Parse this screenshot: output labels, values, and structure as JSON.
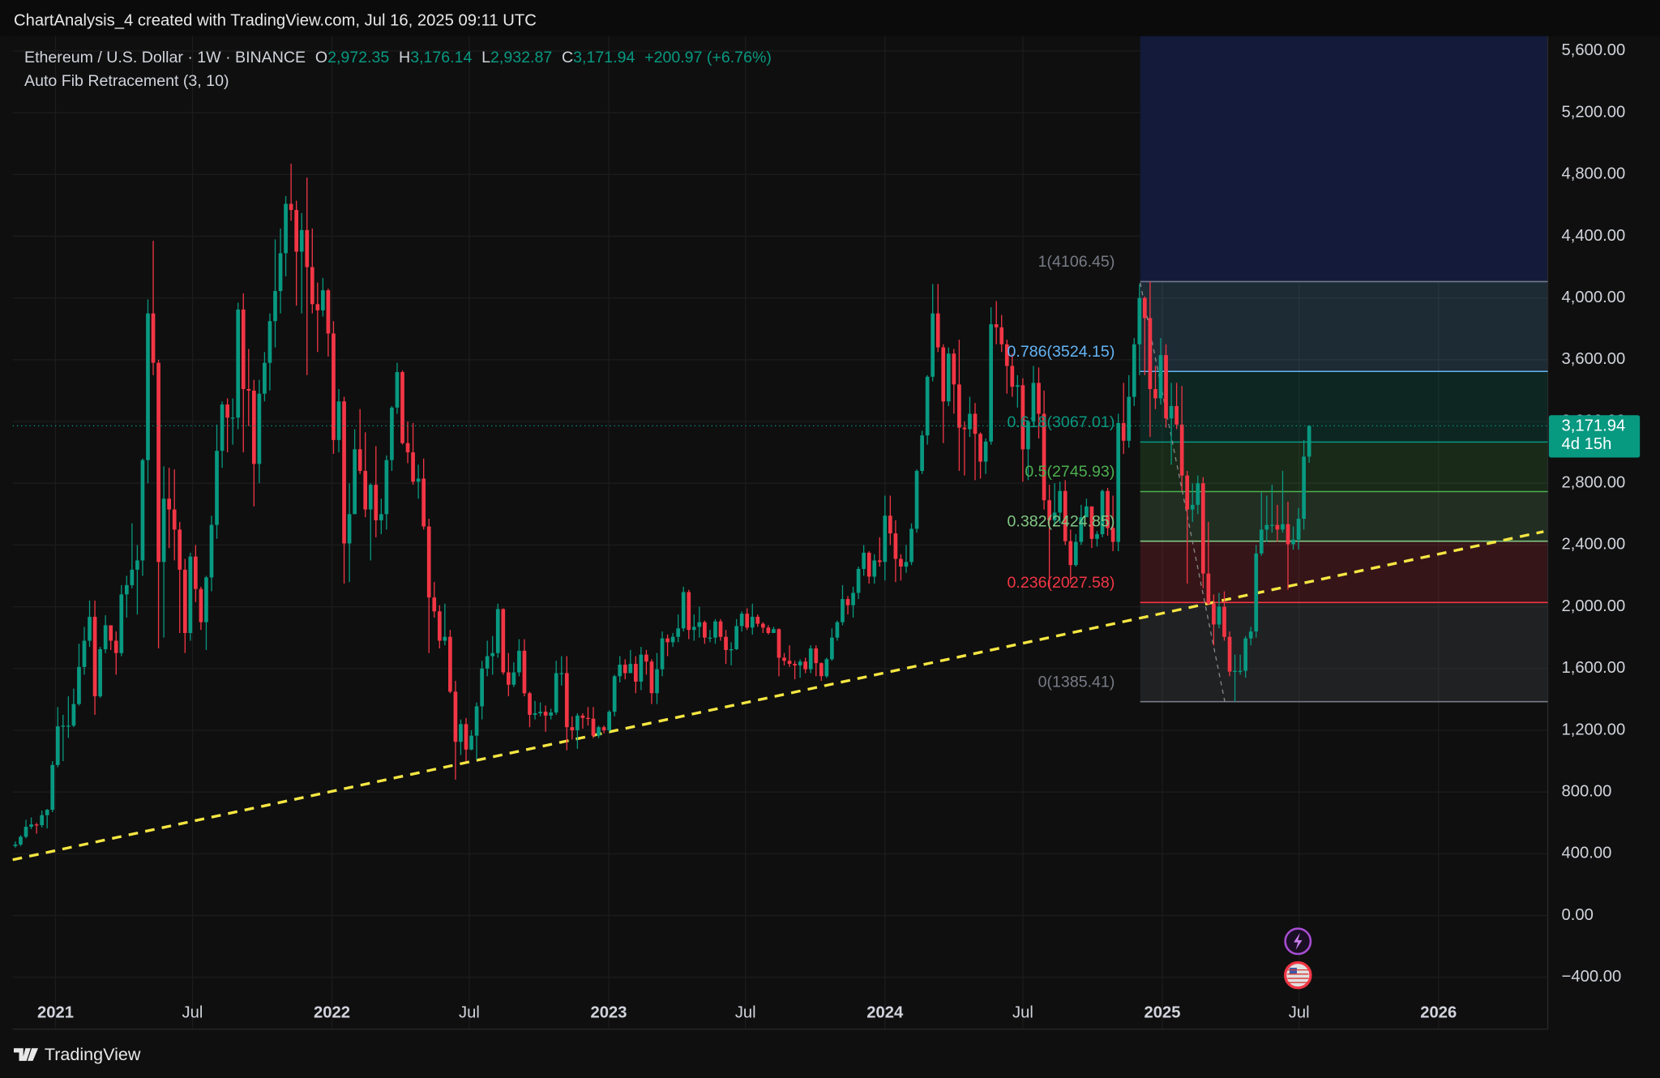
{
  "header": "ChartAnalysis_4 created with TradingView.com, Jul 16, 2025 09:11 UTC",
  "footer": "TradingView",
  "chart_data": {
    "type": "candlestick",
    "title": "Ethereum / U.S. Dollar · 1W · BINANCE",
    "ohlc": [
      {
        "key": "O",
        "value": "2,972.35"
      },
      {
        "key": "H",
        "value": "3,176.14"
      },
      {
        "key": "L",
        "value": "2,932.87"
      },
      {
        "key": "C",
        "value": "3,171.94"
      }
    ],
    "change": "+200.97 (+6.76%)",
    "up_color": "#089981",
    "down_color": "#f23645",
    "last_price": {
      "value": 3171.94,
      "label": "3,171.94"
    },
    "countdown": "4d 15h",
    "grid": true,
    "ylim": [
      -736,
      5696
    ],
    "yticks": [
      {
        "value": 5600,
        "label": "5,600.00"
      },
      {
        "value": 5200,
        "label": "5,200.00"
      },
      {
        "value": 4800,
        "label": "4,800.00"
      },
      {
        "value": 4400,
        "label": "4,400.00"
      },
      {
        "value": 4000,
        "label": "4,000.00"
      },
      {
        "value": 3600,
        "label": "3,600.00"
      },
      {
        "value": 3200,
        "label": "3,200.00"
      },
      {
        "value": 2800,
        "label": "2,800.00"
      },
      {
        "value": 2400,
        "label": "2,400.00"
      },
      {
        "value": 2000,
        "label": "2,000.00"
      },
      {
        "value": 1600,
        "label": "1,600.00"
      },
      {
        "value": 1200,
        "label": "1,200.00"
      },
      {
        "value": 800,
        "label": "800.00"
      },
      {
        "value": 400,
        "label": "400.00"
      },
      {
        "value": 0,
        "label": "0.00"
      },
      {
        "value": -400,
        "label": "−400.00"
      }
    ],
    "xlim": [
      -0.5,
      289
    ],
    "xticks": [
      {
        "value": 7.57,
        "label": "2021"
      },
      {
        "value": 33.4,
        "label": "Jul"
      },
      {
        "value": 59.7,
        "label": "2022"
      },
      {
        "value": 85.6,
        "label": "Jul"
      },
      {
        "value": 111.9,
        "label": "2023"
      },
      {
        "value": 137.7,
        "label": "Jul"
      },
      {
        "value": 164.0,
        "label": "2024"
      },
      {
        "value": 190.0,
        "label": "Jul"
      },
      {
        "value": 216.3,
        "label": "2025"
      },
      {
        "value": 242.1,
        "label": "Jul"
      },
      {
        "value": 268.4,
        "label": "2026"
      }
    ],
    "fib": {
      "title": "Auto Fib Retracement (3, 10)",
      "levels": [
        {
          "value": 4106.45,
          "label": "1(4106.45)",
          "color": "#787b86"
        },
        {
          "value": 3524.15,
          "label": "0.786(3524.15)",
          "color": "#64b5f6"
        },
        {
          "value": 3067.01,
          "label": "0.618(3067.01)",
          "color": "#089981"
        },
        {
          "value": 2745.93,
          "label": "0.5(2745.93)",
          "color": "#4caf50"
        },
        {
          "value": 2424.85,
          "label": "0.382(2424.85)",
          "color": "#81c784"
        },
        {
          "value": 2027.58,
          "label": "0.236(2027.58)",
          "color": "#f23645"
        },
        {
          "value": 1385.41,
          "label": "0(1385.41)",
          "color": "#787b86"
        }
      ]
    },
    "open": [
      450,
      460,
      510,
      575,
      590,
      585,
      650,
      685,
      975,
      1225,
      1230,
      1230,
      1370,
      1610,
      1780,
      1935,
      1420,
      1725,
      1880,
      1780,
      1700,
      2080,
      2140,
      2240,
      2300,
      2950,
      3900,
      3580,
      2290,
      2700,
      2630,
      2500,
      2240,
      1830,
      2325,
      2115,
      1900,
      2190,
      2530,
      3010,
      3310,
      3225,
      3225,
      3925,
      3410,
      3400,
      2925,
      3380,
      3580,
      3850,
      4045,
      4290,
      4610,
      4570,
      4300,
      4440,
      4200,
      3960,
      3920,
      4050,
      3770,
      3080,
      3330,
      2410,
      2600,
      3020,
      2880,
      2630,
      2790,
      2560,
      2600,
      2950,
      3290,
      3520,
      3060,
      3000,
      2810,
      2830,
      2520,
      2060,
      1970,
      1780,
      1805,
      1450,
      1125,
      1240,
      1075,
      1165,
      1355,
      1600,
      1680,
      1700,
      1985,
      1575,
      1495,
      1575,
      1715,
      1440,
      1300,
      1310,
      1320,
      1295,
      1315,
      1570,
      1570,
      1220,
      1200,
      1295,
      1280,
      1275,
      1165,
      1220,
      1200,
      1320,
      1550,
      1625,
      1570,
      1630,
      1515,
      1690,
      1645,
      1440,
      1595,
      1795,
      1770,
      1805,
      1860,
      2095,
      1850,
      1870,
      1900,
      1800,
      1800,
      1905,
      1805,
      1720,
      1725,
      1875,
      1955,
      1865,
      1935,
      1890,
      1865,
      1830,
      1855,
      1670,
      1650,
      1630,
      1620,
      1645,
      1595,
      1730,
      1635,
      1550,
      1660,
      1800,
      1900,
      2050,
      2010,
      2090,
      2245,
      2350,
      2195,
      2300,
      2290,
      2590,
      2475,
      2310,
      2260,
      2290,
      2505,
      2880,
      3110,
      3490,
      3900,
      3680,
      3330,
      3640,
      3440,
      3160,
      3150,
      3250,
      3120,
      2940,
      3070,
      3830,
      3810,
      3700,
      3560,
      3425,
      3435,
      3020,
      3200,
      3450,
      3250,
      2690,
      2560,
      2610,
      2750,
      2425,
      2270,
      2420,
      2580,
      2650,
      2440,
      2470,
      2750,
      2510,
      2420,
      3190,
      3075,
      3360,
      3700,
      4000,
      3870,
      3410,
      3350,
      3630,
      3220,
      3300,
      3180,
      2850,
      2630,
      2660,
      2800,
      2215,
      2020,
      1885,
      2000,
      1805,
      1580,
      1585,
      1585,
      1795,
      1840,
      2345,
      2500,
      2530,
      2530,
      2500,
      2535,
      2405,
      2435,
      2570,
      2972.35
    ],
    "high": [
      480,
      520,
      620,
      635,
      600,
      680,
      690,
      1000,
      1350,
      1300,
      1420,
      1470,
      1760,
      1870,
      2040,
      2040,
      1740,
      1945,
      1880,
      1840,
      2140,
      2200,
      2540,
      2400,
      2960,
      3990,
      4370,
      3600,
      2910,
      2900,
      2890,
      2550,
      2310,
      2350,
      2400,
      2130,
      2200,
      2590,
      3180,
      3330,
      3350,
      3350,
      3970,
      4030,
      3670,
      3470,
      3470,
      3650,
      3900,
      4380,
      4450,
      4660,
      4870,
      4630,
      4550,
      4780,
      4450,
      4100,
      4130,
      4060,
      3850,
      3410,
      3360,
      2800,
      3150,
      3280,
      3130,
      2800,
      3040,
      2700,
      2980,
      3300,
      3580,
      3530,
      3200,
      3190,
      2920,
      2960,
      2570,
      2160,
      2010,
      2020,
      1850,
      1520,
      1270,
      1280,
      1200,
      1380,
      1650,
      1780,
      1810,
      2020,
      1990,
      1700,
      1640,
      1790,
      1790,
      1450,
      1390,
      1380,
      1360,
      1340,
      1650,
      1680,
      1680,
      1290,
      1310,
      1310,
      1350,
      1350,
      1230,
      1230,
      1330,
      1560,
      1680,
      1660,
      1720,
      1680,
      1740,
      1720,
      1660,
      1700,
      1840,
      1820,
      1830,
      1950,
      2130,
      2110,
      1950,
      2000,
      1910,
      1850,
      1920,
      1920,
      1850,
      1770,
      1920,
      1970,
      1990,
      2020,
      1950,
      1900,
      1880,
      1870,
      1860,
      1700,
      1750,
      1650,
      1660,
      1670,
      1750,
      1750,
      1640,
      1670,
      1860,
      1910,
      2140,
      2070,
      2130,
      2260,
      2400,
      2360,
      2340,
      2450,
      2720,
      2720,
      2560,
      2340,
      2400,
      2540,
      2890,
      3140,
      3500,
      4090,
      4090,
      3700,
      3680,
      3670,
      3730,
      3200,
      3360,
      3320,
      3130,
      3090,
      3940,
      3980,
      3890,
      3730,
      3640,
      3500,
      3480,
      3210,
      3560,
      3550,
      3400,
      2790,
      2800,
      2810,
      2820,
      2500,
      2470,
      2660,
      2700,
      2650,
      2490,
      2760,
      2770,
      2720,
      3250,
      3450,
      3500,
      3740,
      4090,
      4010,
      4106.45,
      3560,
      3740,
      3700,
      3450,
      3450,
      3430,
      2880,
      2800,
      2850,
      2840,
      2550,
      2080,
      2090,
      2100,
      1840,
      1690,
      1690,
      1810,
      1870,
      2400,
      2740,
      2720,
      2790,
      2660,
      2880,
      2680,
      2520,
      2640,
      3080,
      3176.14
    ],
    "low": [
      440,
      450,
      500,
      560,
      530,
      570,
      565,
      670,
      960,
      1000,
      1150,
      1220,
      1360,
      1560,
      1740,
      1300,
      1410,
      1700,
      1720,
      1560,
      1680,
      1930,
      2120,
      1950,
      2200,
      2800,
      3500,
      1730,
      1800,
      2380,
      2300,
      1830,
      1700,
      1780,
      2030,
      1850,
      1720,
      2100,
      2440,
      2900,
      3000,
      3050,
      3150,
      3000,
      3170,
      2650,
      2800,
      3330,
      3400,
      3680,
      3900,
      4140,
      4500,
      3950,
      3900,
      3500,
      3900,
      3650,
      3880,
      3620,
      2990,
      3000,
      2150,
      2160,
      2600,
      2860,
      2580,
      2300,
      2450,
      2470,
      2500,
      2880,
      3250,
      3050,
      2930,
      2790,
      2700,
      2500,
      1700,
      1930,
      1730,
      1750,
      1440,
      880,
      1040,
      1000,
      1070,
      1010,
      1270,
      1550,
      1560,
      1670,
      1560,
      1420,
      1480,
      1550,
      1420,
      1220,
      1270,
      1290,
      1190,
      1270,
      1300,
      1490,
      1070,
      1140,
      1080,
      1210,
      1230,
      1150,
      1150,
      1180,
      1190,
      1290,
      1510,
      1530,
      1570,
      1440,
      1460,
      1560,
      1370,
      1370,
      1550,
      1680,
      1740,
      1770,
      1840,
      1790,
      1780,
      1800,
      1760,
      1770,
      1760,
      1780,
      1630,
      1620,
      1720,
      1840,
      1850,
      1820,
      1870,
      1830,
      1820,
      1830,
      1550,
      1620,
      1610,
      1530,
      1540,
      1570,
      1570,
      1550,
      1520,
      1540,
      1650,
      1780,
      1880,
      1950,
      1930,
      2050,
      2200,
      2150,
      2150,
      2260,
      2170,
      2400,
      2160,
      2170,
      2220,
      2270,
      2480,
      2860,
      3050,
      3460,
      3650,
      3060,
      3300,
      3250,
      2880,
      2850,
      3100,
      2820,
      2830,
      2860,
      3050,
      3700,
      3650,
      3380,
      3360,
      3290,
      2810,
      2820,
      3180,
      3090,
      2630,
      2120,
      2520,
      2540,
      2400,
      2150,
      2260,
      2400,
      2580,
      2380,
      2390,
      2450,
      2460,
      2360,
      2360,
      2990,
      3030,
      3300,
      3500,
      3500,
      3100,
      3280,
      3310,
      3160,
      2920,
      3150,
      2750,
      2150,
      2550,
      2600,
      2120,
      2010,
      1750,
      1860,
      1780,
      1550,
      1385.41,
      1560,
      1540,
      1750,
      1800,
      2330,
      2420,
      2480,
      2420,
      2480,
      2110,
      2370,
      2370,
      2500,
      2932.87
    ],
    "close": [
      460,
      510,
      575,
      590,
      585,
      650,
      685,
      975,
      1225,
      1230,
      1230,
      1370,
      1610,
      1780,
      1935,
      1420,
      1725,
      1880,
      1780,
      1700,
      2080,
      2140,
      2240,
      2300,
      2950,
      3900,
      3580,
      2290,
      2700,
      2630,
      2500,
      2240,
      1830,
      2325,
      2115,
      1900,
      2190,
      2530,
      3010,
      3310,
      3225,
      3225,
      3925,
      3410,
      3400,
      2925,
      3380,
      3580,
      3850,
      4045,
      4290,
      4610,
      4570,
      4300,
      4440,
      4200,
      3960,
      3920,
      4050,
      3770,
      3080,
      3330,
      2410,
      2600,
      3020,
      2880,
      2630,
      2790,
      2560,
      2600,
      2950,
      3290,
      3520,
      3060,
      3000,
      2810,
      2830,
      2520,
      2060,
      1970,
      1780,
      1805,
      1450,
      1125,
      1240,
      1075,
      1165,
      1355,
      1600,
      1680,
      1700,
      1985,
      1575,
      1495,
      1575,
      1715,
      1440,
      1300,
      1310,
      1320,
      1295,
      1315,
      1570,
      1570,
      1220,
      1200,
      1295,
      1280,
      1275,
      1165,
      1220,
      1200,
      1320,
      1550,
      1625,
      1570,
      1630,
      1515,
      1690,
      1645,
      1440,
      1595,
      1795,
      1770,
      1805,
      1860,
      2095,
      1850,
      1870,
      1900,
      1800,
      1800,
      1905,
      1805,
      1720,
      1725,
      1875,
      1955,
      1865,
      1935,
      1890,
      1865,
      1830,
      1855,
      1670,
      1650,
      1630,
      1620,
      1645,
      1595,
      1730,
      1635,
      1550,
      1660,
      1800,
      1900,
      2050,
      2010,
      2090,
      2245,
      2350,
      2195,
      2300,
      2290,
      2590,
      2475,
      2310,
      2260,
      2290,
      2505,
      2880,
      3110,
      3490,
      3900,
      3680,
      3330,
      3640,
      3440,
      3160,
      3150,
      3250,
      3120,
      2940,
      3070,
      3830,
      3810,
      3700,
      3560,
      3425,
      3435,
      3020,
      3200,
      3450,
      3250,
      2690,
      2560,
      2610,
      2750,
      2425,
      2270,
      2420,
      2580,
      2650,
      2440,
      2470,
      2750,
      2510,
      2420,
      3190,
      3075,
      3360,
      3700,
      4000,
      3870,
      3410,
      3350,
      3630,
      3220,
      3300,
      3180,
      2850,
      2630,
      2660,
      2800,
      2215,
      2020,
      1885,
      2000,
      1805,
      1580,
      1585,
      1585,
      1795,
      1840,
      2345,
      2500,
      2530,
      2530,
      2500,
      2535,
      2405,
      2435,
      2570,
      2972.35,
      3171.94
    ]
  }
}
